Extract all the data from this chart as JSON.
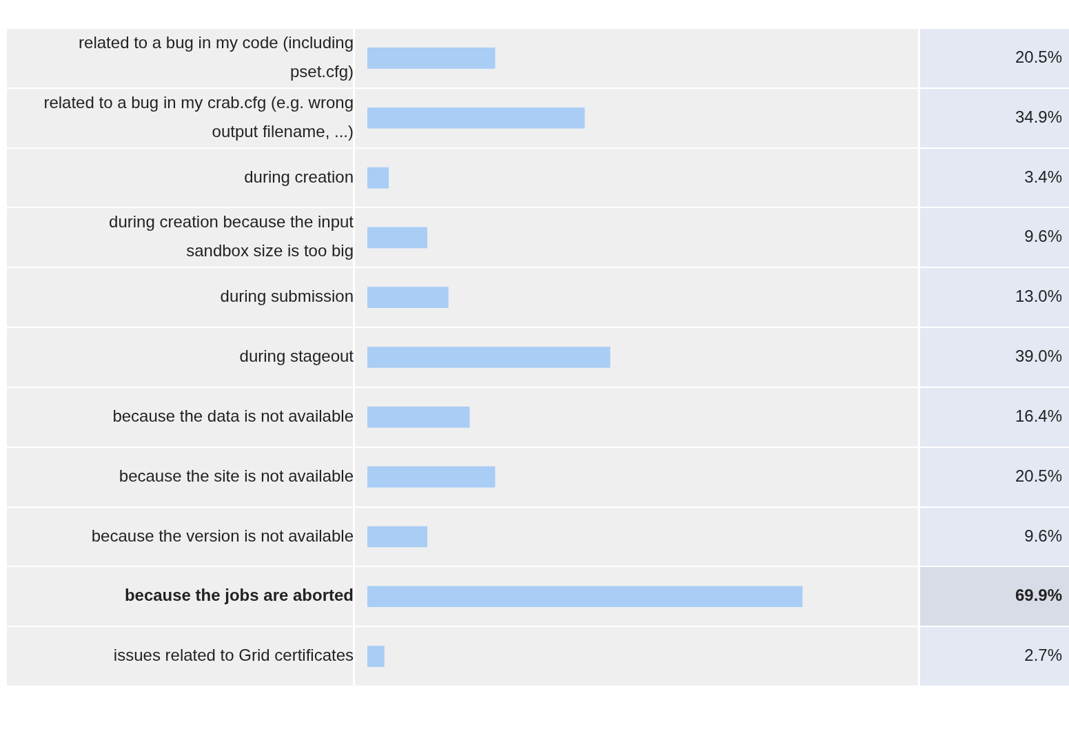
{
  "chart_data": {
    "type": "bar",
    "orientation": "horizontal",
    "grid": false,
    "legend": false,
    "color": "#a9cdf5",
    "categories": [
      "related to a bug in my code (including pset.cfg)",
      "related to a bug in my crab.cfg (e.g. wrong output filename, ...)",
      "during creation",
      "during creation because the input sandbox size is too big",
      "during submission",
      "during stageout",
      "because the data is not available",
      "because the site is not available",
      "because the version is not available",
      "because the jobs are aborted",
      "issues related to Grid certificates"
    ],
    "values": [
      20.5,
      34.9,
      3.4,
      9.6,
      13.0,
      39.0,
      16.4,
      20.5,
      9.6,
      69.9,
      2.7
    ],
    "value_labels": [
      "20.5%",
      "34.9%",
      "3.4%",
      "9.6%",
      "13.0%",
      "39.0%",
      "16.4%",
      "20.5%",
      "9.6%",
      "69.9%",
      "2.7%"
    ]
  }
}
